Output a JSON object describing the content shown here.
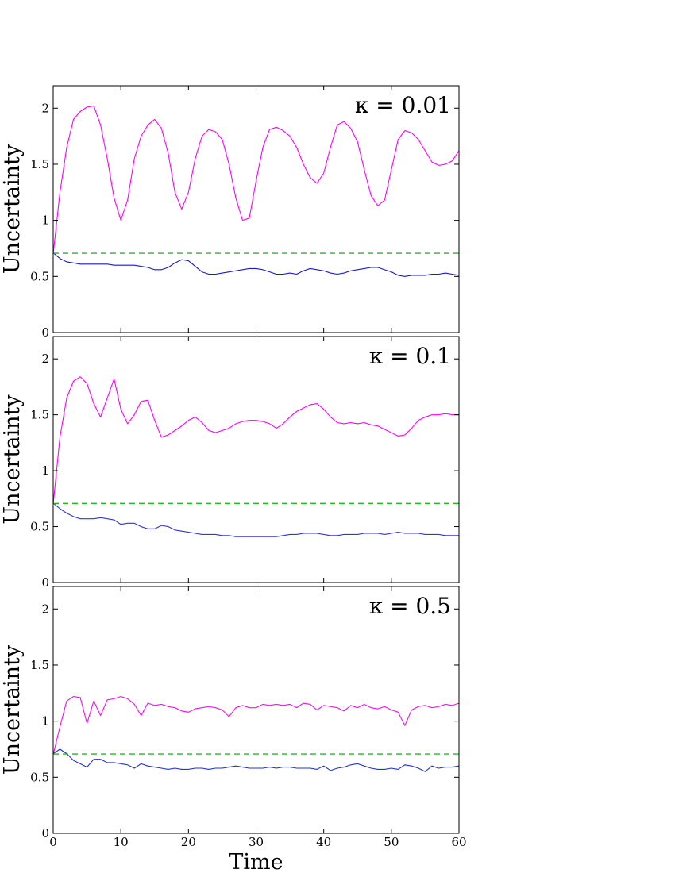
{
  "chart_data": [
    {
      "type": "line",
      "annotation": "κ = 0.01",
      "ylabel": "Uncertainty",
      "xlim": [
        0,
        60
      ],
      "ylim": [
        0,
        2.2
      ],
      "xticks": [
        0,
        10,
        20,
        30,
        40,
        50,
        60
      ],
      "yticks": [
        0,
        0.5,
        1,
        1.5,
        2
      ],
      "ytick_labels": [
        "0",
        "0.5",
        "1",
        "1.5",
        "2"
      ],
      "series": [
        {
          "color": "#ff00ff",
          "x": [
            0,
            1,
            2,
            3,
            4,
            5,
            6,
            7,
            8,
            9,
            10,
            11,
            12,
            13,
            14,
            15,
            16,
            17,
            18,
            19,
            20,
            21,
            22,
            23,
            24,
            25,
            26,
            27,
            28,
            29,
            30,
            31,
            32,
            33,
            34,
            35,
            36,
            37,
            38,
            39,
            40,
            41,
            42,
            43,
            44,
            45,
            46,
            47,
            48,
            49,
            50,
            51,
            52,
            53,
            54,
            55,
            56,
            57,
            58,
            59,
            60
          ],
          "y": [
            0.7,
            1.25,
            1.65,
            1.9,
            1.97,
            2.01,
            2.02,
            1.85,
            1.55,
            1.2,
            1.0,
            1.18,
            1.55,
            1.75,
            1.85,
            1.9,
            1.82,
            1.6,
            1.25,
            1.1,
            1.25,
            1.55,
            1.75,
            1.81,
            1.79,
            1.72,
            1.5,
            1.2,
            1.0,
            1.02,
            1.35,
            1.65,
            1.81,
            1.83,
            1.8,
            1.75,
            1.65,
            1.5,
            1.38,
            1.33,
            1.42,
            1.65,
            1.85,
            1.88,
            1.82,
            1.7,
            1.45,
            1.22,
            1.13,
            1.18,
            1.45,
            1.72,
            1.8,
            1.78,
            1.72,
            1.62,
            1.52,
            1.49,
            1.5,
            1.53,
            1.62
          ]
        },
        {
          "color": "#1a1acc",
          "x": [
            0,
            1,
            2,
            3,
            4,
            5,
            6,
            7,
            8,
            9,
            10,
            11,
            12,
            13,
            14,
            15,
            16,
            17,
            18,
            19,
            20,
            21,
            22,
            23,
            24,
            25,
            26,
            27,
            28,
            29,
            30,
            31,
            32,
            33,
            34,
            35,
            36,
            37,
            38,
            39,
            40,
            41,
            42,
            43,
            44,
            45,
            46,
            47,
            48,
            49,
            50,
            51,
            52,
            53,
            54,
            55,
            56,
            57,
            58,
            59,
            60
          ],
          "y": [
            0.71,
            0.66,
            0.63,
            0.62,
            0.61,
            0.61,
            0.61,
            0.61,
            0.61,
            0.6,
            0.6,
            0.6,
            0.6,
            0.59,
            0.58,
            0.56,
            0.56,
            0.58,
            0.62,
            0.65,
            0.64,
            0.59,
            0.54,
            0.52,
            0.52,
            0.53,
            0.54,
            0.55,
            0.56,
            0.57,
            0.57,
            0.56,
            0.54,
            0.52,
            0.52,
            0.53,
            0.52,
            0.55,
            0.57,
            0.56,
            0.55,
            0.53,
            0.52,
            0.53,
            0.55,
            0.56,
            0.57,
            0.58,
            0.58,
            0.56,
            0.54,
            0.51,
            0.5,
            0.51,
            0.51,
            0.51,
            0.52,
            0.52,
            0.53,
            0.52,
            0.51
          ]
        },
        {
          "color": "#22bb22",
          "dash": true,
          "x": [
            0,
            60
          ],
          "y": [
            0.707,
            0.707
          ]
        }
      ]
    },
    {
      "type": "line",
      "annotation": "κ = 0.1",
      "ylabel": "Uncertainty",
      "xlim": [
        0,
        60
      ],
      "ylim": [
        0,
        2.2
      ],
      "xticks": [
        0,
        10,
        20,
        30,
        40,
        50,
        60
      ],
      "yticks": [
        0,
        0.5,
        1,
        1.5,
        2
      ],
      "ytick_labels": [
        "0",
        "0.5",
        "1",
        "1.5",
        "2"
      ],
      "series": [
        {
          "color": "#ff00ff",
          "x": [
            0,
            1,
            2,
            3,
            4,
            5,
            6,
            7,
            8,
            9,
            10,
            11,
            12,
            13,
            14,
            15,
            16,
            17,
            18,
            19,
            20,
            21,
            22,
            23,
            24,
            25,
            26,
            27,
            28,
            29,
            30,
            31,
            32,
            33,
            34,
            35,
            36,
            37,
            38,
            39,
            40,
            41,
            42,
            43,
            44,
            45,
            46,
            47,
            48,
            49,
            50,
            51,
            52,
            53,
            54,
            55,
            56,
            57,
            58,
            59,
            60
          ],
          "y": [
            0.7,
            1.3,
            1.65,
            1.8,
            1.84,
            1.78,
            1.6,
            1.48,
            1.65,
            1.82,
            1.55,
            1.42,
            1.5,
            1.62,
            1.63,
            1.45,
            1.3,
            1.32,
            1.36,
            1.4,
            1.45,
            1.48,
            1.43,
            1.36,
            1.34,
            1.36,
            1.38,
            1.42,
            1.44,
            1.45,
            1.45,
            1.44,
            1.42,
            1.38,
            1.42,
            1.48,
            1.53,
            1.56,
            1.59,
            1.6,
            1.55,
            1.48,
            1.43,
            1.42,
            1.43,
            1.42,
            1.43,
            1.41,
            1.4,
            1.37,
            1.34,
            1.31,
            1.32,
            1.38,
            1.45,
            1.48,
            1.5,
            1.5,
            1.51,
            1.5,
            1.5
          ]
        },
        {
          "color": "#3333dd",
          "x": [
            0,
            1,
            2,
            3,
            4,
            5,
            6,
            7,
            8,
            9,
            10,
            11,
            12,
            13,
            14,
            15,
            16,
            17,
            18,
            19,
            20,
            21,
            22,
            23,
            24,
            25,
            26,
            27,
            28,
            29,
            30,
            31,
            32,
            33,
            34,
            35,
            36,
            37,
            38,
            39,
            40,
            41,
            42,
            43,
            44,
            45,
            46,
            47,
            48,
            49,
            50,
            51,
            52,
            53,
            54,
            55,
            56,
            57,
            58,
            59,
            60
          ],
          "y": [
            0.71,
            0.66,
            0.62,
            0.59,
            0.57,
            0.57,
            0.57,
            0.58,
            0.57,
            0.56,
            0.52,
            0.53,
            0.53,
            0.5,
            0.48,
            0.48,
            0.51,
            0.5,
            0.47,
            0.46,
            0.45,
            0.44,
            0.43,
            0.43,
            0.43,
            0.42,
            0.42,
            0.41,
            0.41,
            0.41,
            0.41,
            0.41,
            0.41,
            0.41,
            0.42,
            0.43,
            0.43,
            0.44,
            0.44,
            0.44,
            0.43,
            0.42,
            0.42,
            0.43,
            0.43,
            0.43,
            0.44,
            0.44,
            0.44,
            0.43,
            0.44,
            0.45,
            0.44,
            0.44,
            0.44,
            0.43,
            0.43,
            0.43,
            0.42,
            0.42,
            0.42
          ]
        },
        {
          "color": "#22bb22",
          "dash": true,
          "x": [
            0,
            60
          ],
          "y": [
            0.707,
            0.707
          ]
        }
      ]
    },
    {
      "type": "line",
      "annotation": "κ = 0.5",
      "ylabel": "Uncertainty",
      "xlabel": "Time",
      "xlim": [
        0,
        60
      ],
      "ylim": [
        0,
        2.2
      ],
      "xticks": [
        0,
        10,
        20,
        30,
        40,
        50,
        60
      ],
      "yticks": [
        0,
        0.5,
        1,
        1.5,
        2
      ],
      "ytick_labels": [
        "0",
        "0.5",
        "1",
        "1.5",
        "2"
      ],
      "series": [
        {
          "color": "#ee11ee",
          "x": [
            0,
            1,
            2,
            3,
            4,
            5,
            6,
            7,
            8,
            9,
            10,
            11,
            12,
            13,
            14,
            15,
            16,
            17,
            18,
            19,
            20,
            21,
            22,
            23,
            24,
            25,
            26,
            27,
            28,
            29,
            30,
            31,
            32,
            33,
            34,
            35,
            36,
            37,
            38,
            39,
            40,
            41,
            42,
            43,
            44,
            45,
            46,
            47,
            48,
            49,
            50,
            51,
            52,
            53,
            54,
            55,
            56,
            57,
            58,
            59,
            60
          ],
          "y": [
            0.7,
            0.95,
            1.18,
            1.22,
            1.21,
            0.98,
            1.18,
            1.05,
            1.19,
            1.2,
            1.22,
            1.2,
            1.15,
            1.05,
            1.16,
            1.14,
            1.15,
            1.13,
            1.12,
            1.09,
            1.08,
            1.11,
            1.12,
            1.13,
            1.12,
            1.1,
            1.04,
            1.12,
            1.14,
            1.12,
            1.12,
            1.15,
            1.14,
            1.15,
            1.14,
            1.15,
            1.12,
            1.16,
            1.15,
            1.1,
            1.14,
            1.13,
            1.12,
            1.09,
            1.14,
            1.12,
            1.15,
            1.12,
            1.11,
            1.13,
            1.1,
            1.08,
            0.96,
            1.1,
            1.13,
            1.14,
            1.12,
            1.13,
            1.15,
            1.14,
            1.16
          ]
        },
        {
          "color": "#2233cc",
          "x": [
            0,
            1,
            2,
            3,
            4,
            5,
            6,
            7,
            8,
            9,
            10,
            11,
            12,
            13,
            14,
            15,
            16,
            17,
            18,
            19,
            20,
            21,
            22,
            23,
            24,
            25,
            26,
            27,
            28,
            29,
            30,
            31,
            32,
            33,
            34,
            35,
            36,
            37,
            38,
            39,
            40,
            41,
            42,
            43,
            44,
            45,
            46,
            47,
            48,
            49,
            50,
            51,
            52,
            53,
            54,
            55,
            56,
            57,
            58,
            59,
            60
          ],
          "y": [
            0.71,
            0.75,
            0.71,
            0.65,
            0.62,
            0.59,
            0.66,
            0.66,
            0.63,
            0.63,
            0.62,
            0.61,
            0.58,
            0.62,
            0.6,
            0.59,
            0.58,
            0.57,
            0.58,
            0.57,
            0.57,
            0.58,
            0.58,
            0.57,
            0.58,
            0.58,
            0.59,
            0.6,
            0.59,
            0.58,
            0.58,
            0.58,
            0.59,
            0.58,
            0.59,
            0.59,
            0.58,
            0.58,
            0.58,
            0.57,
            0.6,
            0.56,
            0.58,
            0.59,
            0.61,
            0.62,
            0.6,
            0.58,
            0.57,
            0.57,
            0.58,
            0.57,
            0.61,
            0.6,
            0.58,
            0.55,
            0.6,
            0.58,
            0.59,
            0.59,
            0.6
          ]
        },
        {
          "color": "#22bb22",
          "dash": true,
          "x": [
            0,
            60
          ],
          "y": [
            0.707,
            0.707
          ]
        }
      ]
    }
  ]
}
